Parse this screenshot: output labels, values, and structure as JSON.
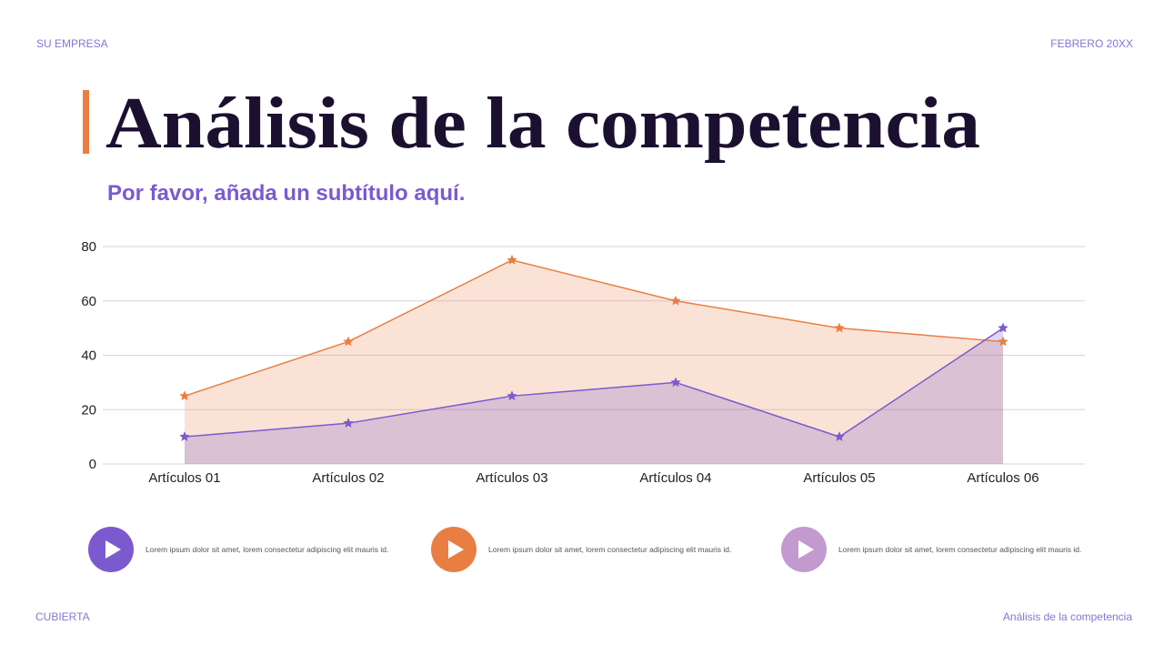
{
  "header": {
    "company": "SU EMPRESA",
    "date": "FEBRERO 20XX"
  },
  "title": "Análisis de la competencia",
  "subtitle": "Por favor, añada un subtítulo aquí.",
  "chart_data": {
    "type": "area",
    "categories": [
      "Artículos 01",
      "Artículos 02",
      "Artículos 03",
      "Artículos 04",
      "Artículos 05",
      "Artículos 06"
    ],
    "series": [
      {
        "color": "#e97e43",
        "values": [
          25,
          45,
          75,
          60,
          50,
          45
        ]
      },
      {
        "color": "#7b5acf",
        "values": [
          10,
          15,
          25,
          30,
          10,
          50
        ]
      }
    ],
    "ylim": [
      0,
      80
    ],
    "yticks": [
      0,
      20,
      40,
      60,
      80
    ],
    "grid": true
  },
  "items": [
    "Lorem ipsum dolor sit amet, lorem consectetur adipiscing elit mauris id.",
    "Lorem ipsum dolor sit amet, lorem consectetur adipiscing elit mauris id.",
    "Lorem ipsum dolor sit amet, lorem consectetur adipiscing elit mauris id."
  ],
  "footer": {
    "left": "CUBIERTA",
    "right": "Análisis de la competencia"
  }
}
